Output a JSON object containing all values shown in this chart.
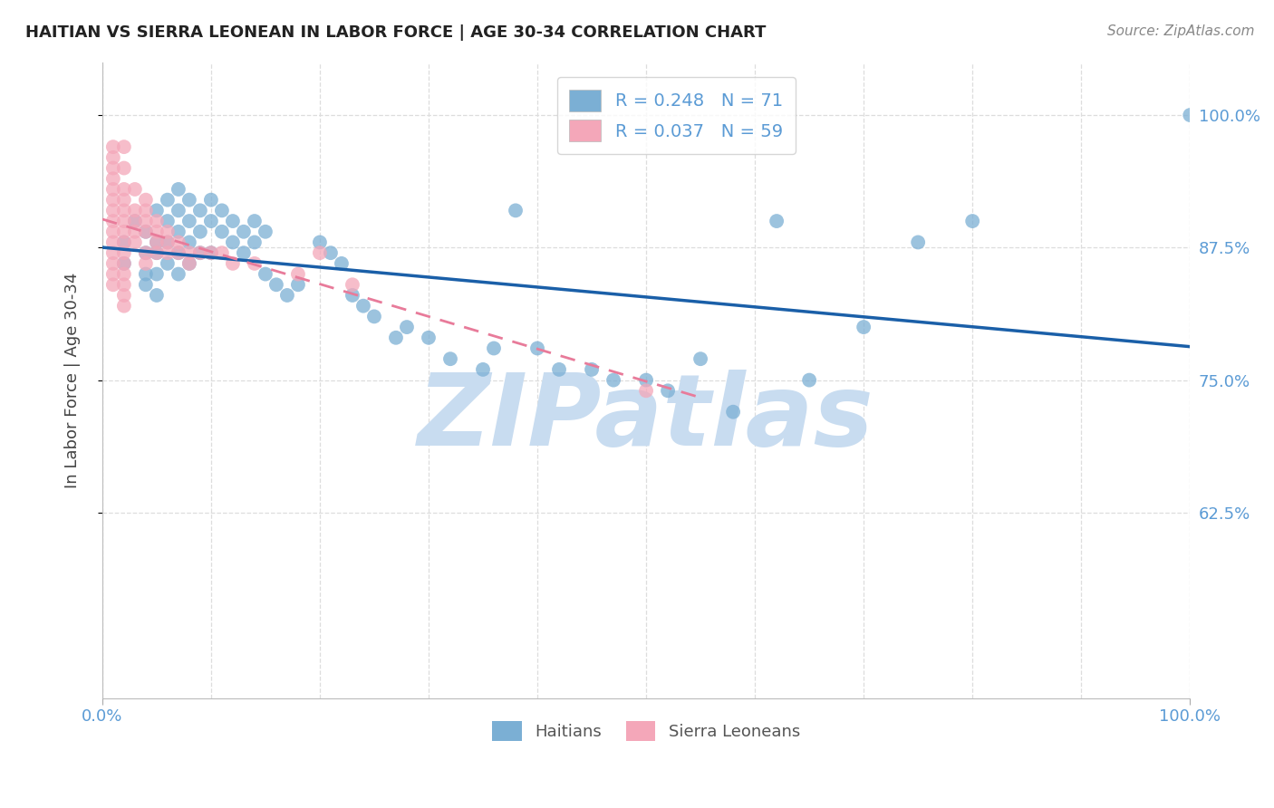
{
  "title": "HAITIAN VS SIERRA LEONEAN IN LABOR FORCE | AGE 30-34 CORRELATION CHART",
  "source_text": "Source: ZipAtlas.com",
  "ylabel": "In Labor Force | Age 30-34",
  "xlim": [
    0.0,
    1.0
  ],
  "ylim": [
    0.45,
    1.05
  ],
  "legend_r_blue": "R = 0.248",
  "legend_n_blue": "N = 71",
  "legend_r_pink": "R = 0.037",
  "legend_n_pink": "N = 59",
  "blue_color": "#7BAFD4",
  "pink_color": "#F4A7B9",
  "blue_line_color": "#1A5FA8",
  "pink_line_color": "#E87B9A",
  "title_color": "#222222",
  "axis_label_color": "#444444",
  "tick_label_color": "#5B9BD5",
  "watermark_color": "#C8DCF0",
  "grid_color": "#DDDDDD",
  "blue_scatter_x": [
    0.02,
    0.02,
    0.03,
    0.04,
    0.04,
    0.04,
    0.04,
    0.05,
    0.05,
    0.05,
    0.05,
    0.05,
    0.06,
    0.06,
    0.06,
    0.06,
    0.07,
    0.07,
    0.07,
    0.07,
    0.07,
    0.08,
    0.08,
    0.08,
    0.08,
    0.09,
    0.09,
    0.09,
    0.1,
    0.1,
    0.1,
    0.11,
    0.11,
    0.12,
    0.12,
    0.13,
    0.13,
    0.14,
    0.14,
    0.15,
    0.15,
    0.16,
    0.17,
    0.18,
    0.2,
    0.21,
    0.22,
    0.23,
    0.24,
    0.25,
    0.27,
    0.28,
    0.3,
    0.32,
    0.35,
    0.36,
    0.38,
    0.4,
    0.42,
    0.45,
    0.47,
    0.5,
    0.52,
    0.55,
    0.58,
    0.62,
    0.65,
    0.7,
    0.75,
    0.8,
    1.0
  ],
  "blue_scatter_y": [
    0.88,
    0.86,
    0.9,
    0.89,
    0.87,
    0.85,
    0.84,
    0.91,
    0.88,
    0.87,
    0.85,
    0.83,
    0.92,
    0.9,
    0.88,
    0.86,
    0.93,
    0.91,
    0.89,
    0.87,
    0.85,
    0.92,
    0.9,
    0.88,
    0.86,
    0.91,
    0.89,
    0.87,
    0.92,
    0.9,
    0.87,
    0.91,
    0.89,
    0.9,
    0.88,
    0.89,
    0.87,
    0.9,
    0.88,
    0.89,
    0.85,
    0.84,
    0.83,
    0.84,
    0.88,
    0.87,
    0.86,
    0.83,
    0.82,
    0.81,
    0.79,
    0.8,
    0.79,
    0.77,
    0.76,
    0.78,
    0.91,
    0.78,
    0.76,
    0.76,
    0.75,
    0.75,
    0.74,
    0.77,
    0.72,
    0.9,
    0.75,
    0.8,
    0.88,
    0.9,
    1.0
  ],
  "pink_scatter_x": [
    0.01,
    0.01,
    0.01,
    0.01,
    0.01,
    0.01,
    0.01,
    0.01,
    0.01,
    0.01,
    0.01,
    0.01,
    0.01,
    0.01,
    0.02,
    0.02,
    0.02,
    0.02,
    0.02,
    0.02,
    0.02,
    0.02,
    0.02,
    0.02,
    0.02,
    0.02,
    0.02,
    0.02,
    0.03,
    0.03,
    0.03,
    0.03,
    0.03,
    0.04,
    0.04,
    0.04,
    0.04,
    0.04,
    0.04,
    0.05,
    0.05,
    0.05,
    0.05,
    0.06,
    0.06,
    0.06,
    0.07,
    0.07,
    0.08,
    0.08,
    0.09,
    0.1,
    0.11,
    0.12,
    0.14,
    0.18,
    0.2,
    0.23,
    0.5
  ],
  "pink_scatter_y": [
    0.97,
    0.96,
    0.95,
    0.94,
    0.93,
    0.92,
    0.91,
    0.9,
    0.89,
    0.88,
    0.87,
    0.86,
    0.85,
    0.84,
    0.97,
    0.95,
    0.93,
    0.92,
    0.91,
    0.9,
    0.89,
    0.88,
    0.87,
    0.86,
    0.85,
    0.84,
    0.83,
    0.82,
    0.93,
    0.91,
    0.9,
    0.89,
    0.88,
    0.92,
    0.91,
    0.9,
    0.89,
    0.87,
    0.86,
    0.9,
    0.89,
    0.88,
    0.87,
    0.89,
    0.88,
    0.87,
    0.88,
    0.87,
    0.87,
    0.86,
    0.87,
    0.87,
    0.87,
    0.86,
    0.86,
    0.85,
    0.87,
    0.84,
    0.74
  ],
  "bottom_legend_blue": "Haitians",
  "bottom_legend_pink": "Sierra Leoneans",
  "watermark_text": "ZIPatlas",
  "ytick_positions": [
    0.625,
    0.75,
    0.875,
    1.0
  ],
  "ytick_labels": [
    "62.5%",
    "75.0%",
    "87.5%",
    "100.0%"
  ],
  "grid_x_positions": [
    0.0,
    0.1,
    0.2,
    0.3,
    0.4,
    0.5,
    0.6,
    0.7,
    0.8,
    0.9,
    1.0
  ]
}
